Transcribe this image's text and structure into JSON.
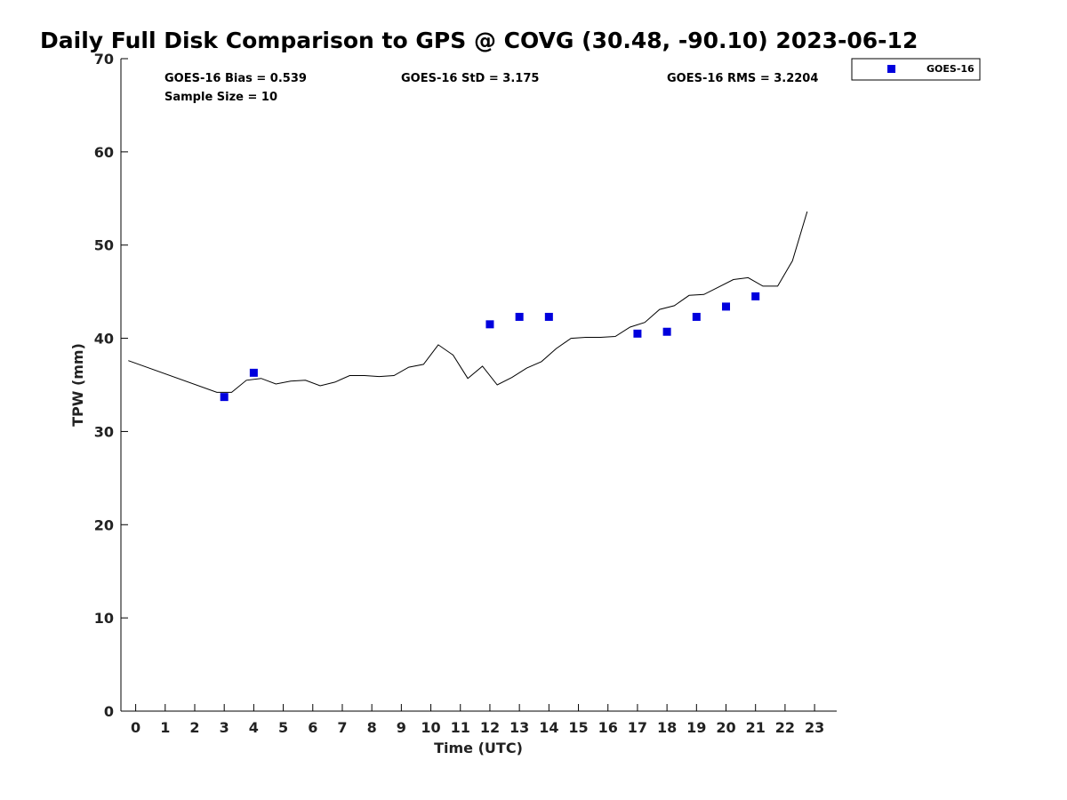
{
  "chart_data": {
    "type": "line",
    "title": "Daily Full Disk Comparison to GPS @ COVG (30.48, -90.10) 2023-06-12",
    "xlabel": "Time (UTC)",
    "ylabel": "TPW (mm)",
    "xlim": [
      -0.5,
      23.75
    ],
    "ylim": [
      0,
      70
    ],
    "xticks": [
      0,
      1,
      2,
      3,
      4,
      5,
      6,
      7,
      8,
      9,
      10,
      11,
      12,
      13,
      14,
      15,
      16,
      17,
      18,
      19,
      20,
      21,
      22,
      23
    ],
    "yticks": [
      0,
      10,
      20,
      30,
      40,
      50,
      60,
      70
    ],
    "grid": false,
    "legend": {
      "position": "top-right",
      "entries": [
        "GOES-16"
      ]
    },
    "stats": {
      "bias": "GOES-16 Bias = 0.539",
      "std": "GOES-16 StD = 3.175",
      "rms": "GOES-16 RMS = 3.2204",
      "sample": "Sample Size = 10"
    },
    "series": [
      {
        "kind": "line",
        "color": "#000000",
        "x": [
          -0.25,
          2.75,
          3.25,
          3.75,
          4.25,
          4.75,
          5.25,
          5.75,
          6.25,
          6.75,
          7.25,
          7.75,
          8.25,
          8.75,
          9.25,
          9.75,
          10.25,
          10.75,
          11.25,
          11.75,
          12.25,
          12.75,
          13.25,
          13.75,
          14.25,
          14.75,
          15.25,
          15.75,
          16.25,
          16.75,
          17.25,
          17.75,
          18.25,
          18.75,
          19.25,
          19.75,
          20.25,
          20.75,
          21.25,
          21.75,
          22.25,
          22.75
        ],
        "y": [
          37.6,
          34.2,
          34.2,
          35.5,
          35.7,
          35.1,
          35.4,
          35.5,
          34.9,
          35.3,
          36.0,
          36.0,
          35.9,
          36.0,
          36.9,
          37.2,
          39.3,
          38.2,
          35.7,
          37.0,
          35.0,
          35.8,
          36.8,
          37.5,
          38.9,
          40.0,
          40.1,
          40.1,
          40.2,
          41.2,
          41.7,
          43.1,
          43.5,
          44.6,
          44.7,
          45.5,
          46.3,
          46.5,
          45.6,
          45.6,
          48.3,
          53.6
        ]
      },
      {
        "name": "GOES-16",
        "kind": "scatter",
        "color": "#0000dd",
        "x": [
          3,
          4,
          12,
          13,
          14,
          17,
          18,
          19,
          20,
          21
        ],
        "y": [
          33.7,
          36.3,
          41.5,
          42.3,
          42.3,
          40.5,
          40.7,
          42.3,
          43.4,
          44.5
        ]
      }
    ]
  }
}
